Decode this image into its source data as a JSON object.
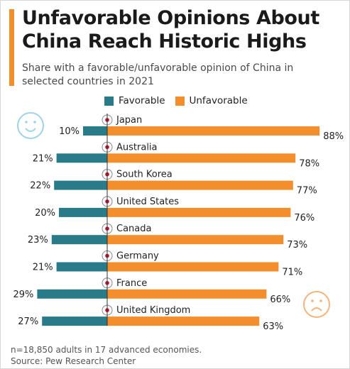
{
  "header": {
    "title": "Unfavorable Opinions About China Reach Historic Highs",
    "subtitle": "Share with a favorable/unfavorable opinion of China in selected countries in 2021"
  },
  "colors": {
    "favorable": "#2a7b8a",
    "unfavorable": "#f28e2b",
    "accent": "#f28e2b",
    "happy_face": "#9fd3e6",
    "sad_face": "#f5b47a"
  },
  "icons": [
    "happy-face-icon",
    "sad-face-icon",
    "flag-icon"
  ],
  "chart_data": {
    "type": "bar",
    "orientation": "horizontal-diverging",
    "categories": [
      "Japan",
      "Australia",
      "South Korea",
      "United States",
      "Canada",
      "Germany",
      "France",
      "United Kingdom"
    ],
    "series": [
      {
        "name": "Favorable",
        "values": [
          10,
          21,
          22,
          20,
          23,
          21,
          29,
          27
        ]
      },
      {
        "name": "Unfavorable",
        "values": [
          88,
          78,
          77,
          76,
          73,
          71,
          66,
          63
        ]
      }
    ],
    "value_suffix": "%",
    "legend_position": "top",
    "grid": false
  },
  "footer": {
    "note": "n=18,850 adults in 17 advanced economies.",
    "source": "Source: Pew Research Center"
  }
}
